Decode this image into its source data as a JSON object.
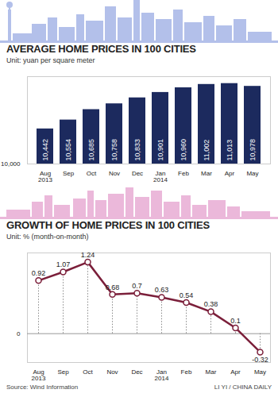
{
  "chart_data": [
    {
      "type": "bar",
      "title": "AVERAGE HOME PRICES IN 100 CITIES",
      "subtitle": "Unit: yuan per square meter",
      "categories": [
        "Aug\n2013",
        "Sep",
        "Oct",
        "Nov",
        "Dec",
        "Jan\n2014",
        "Feb",
        "Mar",
        "Apr",
        "May"
      ],
      "values": [
        10442,
        10554,
        10685,
        10758,
        10833,
        10901,
        10960,
        11002,
        11013,
        10978
      ],
      "value_labels": [
        "10,442",
        "10,554",
        "10,685",
        "10,758",
        "10,833",
        "10,901",
        "10,960",
        "11,002",
        "11,013",
        "10,978"
      ],
      "color": "#1c2a5e",
      "ylim": [
        10000,
        11100
      ],
      "yticks": [
        {
          "value": 10000,
          "label": "10,000"
        }
      ],
      "data_labels": true
    },
    {
      "type": "line",
      "title": "GROWTH OF HOME PRICES IN 100 CITIES",
      "subtitle": "Unit: % (month-on-month)",
      "categories": [
        "Aug\n2013",
        "Sep",
        "Oct",
        "Nov",
        "Dec",
        "Jan\n2014",
        "Feb",
        "Mar",
        "Apr",
        "May"
      ],
      "values": [
        0.92,
        1.07,
        1.24,
        0.68,
        0.7,
        0.63,
        0.54,
        0.38,
        0.1,
        -0.32
      ],
      "color": "#7b1f3a",
      "marker": "circle",
      "ylim": [
        -0.5,
        1.4
      ],
      "yticks": [
        0
      ],
      "data_labels": true,
      "annotations": [
        "Source: Wind Information",
        "LI YI / CHINA DAILY"
      ]
    }
  ]
}
